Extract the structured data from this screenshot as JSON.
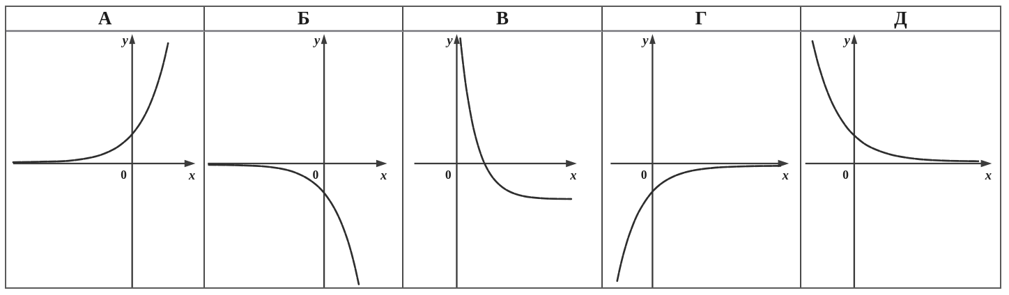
{
  "colors": {
    "axis": "#3c3c3c",
    "curve": "#2d2d2d",
    "text": "#1f1f1f",
    "border": "#5a5a5a",
    "column_divider": "#4a4a4a",
    "header_divider": "#8e8e93",
    "background": "#ffffff"
  },
  "chart_data": {
    "type": "line",
    "description": "Table of five small coordinate-plane sketches of exponential-type function graphs, labelled with Cyrillic letters. Each panel shows x and y axes with arrowheads, origin marked 0, and one smooth monotone curve. No numeric ticks are shown; curve points are normalized panel coordinates (0-1, y down).",
    "grid": "off",
    "legend": "none",
    "axis_labels": {
      "x_label": "x",
      "y_label": "y",
      "origin_label": "0"
    },
    "panels": [
      {
        "label": "А",
        "shape": "increasing exponential y=a^x (a>1): approaches y=0 from above on the left, crosses the y-axis at a positive value, rises steeply to the upper right",
        "y_axis_x": 0.638,
        "x_axis_y": 0.515,
        "x_axis_start": 0.035,
        "x_axis_tip": 0.955,
        "curve": [
          [
            0.035,
            0.51
          ],
          [
            0.18,
            0.508
          ],
          [
            0.32,
            0.504
          ],
          [
            0.45,
            0.488
          ],
          [
            0.54,
            0.461
          ],
          [
            0.6,
            0.429
          ],
          [
            0.638,
            0.4
          ],
          [
            0.68,
            0.356
          ],
          [
            0.72,
            0.298
          ],
          [
            0.755,
            0.23
          ],
          [
            0.785,
            0.156
          ],
          [
            0.805,
            0.095
          ],
          [
            0.82,
            0.044
          ]
        ]
      },
      {
        "label": "Б",
        "shape": "reflection of an exponential below the x-axis, y=-a^x (a>1): approaches y=0 from below on the left, crosses the y-axis at a negative value, plunges down to the lower right",
        "y_axis_x": 0.604,
        "x_axis_y": 0.515,
        "x_axis_start": 0.015,
        "x_axis_tip": 0.92,
        "curve": [
          [
            0.02,
            0.52
          ],
          [
            0.17,
            0.522
          ],
          [
            0.31,
            0.527
          ],
          [
            0.42,
            0.541
          ],
          [
            0.5,
            0.565
          ],
          [
            0.56,
            0.596
          ],
          [
            0.604,
            0.63
          ],
          [
            0.65,
            0.682
          ],
          [
            0.69,
            0.745
          ],
          [
            0.725,
            0.819
          ],
          [
            0.755,
            0.902
          ],
          [
            0.78,
            0.988
          ]
        ]
      },
      {
        "label": "В",
        "shape": "decreasing curve from +infinity just right of the y-axis, crosses the x-axis at a small positive x, flattens toward a horizontal asymptote below the x-axis",
        "y_axis_x": 0.27,
        "x_axis_y": 0.515,
        "x_axis_start": 0.055,
        "x_axis_tip": 0.875,
        "curve": [
          [
            0.288,
            0.025
          ],
          [
            0.305,
            0.143
          ],
          [
            0.325,
            0.254
          ],
          [
            0.355,
            0.377
          ],
          [
            0.39,
            0.474
          ],
          [
            0.425,
            0.537
          ],
          [
            0.47,
            0.586
          ],
          [
            0.53,
            0.622
          ],
          [
            0.61,
            0.643
          ],
          [
            0.72,
            0.652
          ],
          [
            0.85,
            0.654
          ]
        ]
      },
      {
        "label": "Г",
        "shape": "increasing curve rising steeply from the lower left, crosses the y-axis at a negative value, approaches y=0 from below on the right",
        "y_axis_x": 0.252,
        "x_axis_y": 0.515,
        "x_axis_start": 0.04,
        "x_axis_tip": 0.94,
        "curve": [
          [
            0.073,
            0.975
          ],
          [
            0.09,
            0.915
          ],
          [
            0.11,
            0.855
          ],
          [
            0.14,
            0.782
          ],
          [
            0.185,
            0.701
          ],
          [
            0.252,
            0.625
          ],
          [
            0.33,
            0.577
          ],
          [
            0.43,
            0.547
          ],
          [
            0.56,
            0.532
          ],
          [
            0.72,
            0.526
          ],
          [
            0.9,
            0.524
          ]
        ]
      },
      {
        "label": "Д",
        "shape": "decreasing exponential y=a^x (0<a<1): falls from the upper left, crosses the y-axis at a positive value, approaches y=0 from above on the right",
        "y_axis_x": 0.266,
        "x_axis_y": 0.515,
        "x_axis_start": 0.02,
        "x_axis_tip": 0.955,
        "curve": [
          [
            0.056,
            0.036
          ],
          [
            0.075,
            0.097
          ],
          [
            0.095,
            0.152
          ],
          [
            0.125,
            0.222
          ],
          [
            0.165,
            0.294
          ],
          [
            0.215,
            0.359
          ],
          [
            0.266,
            0.405
          ],
          [
            0.34,
            0.448
          ],
          [
            0.45,
            0.48
          ],
          [
            0.58,
            0.497
          ],
          [
            0.73,
            0.504
          ],
          [
            0.89,
            0.506
          ]
        ]
      }
    ]
  }
}
